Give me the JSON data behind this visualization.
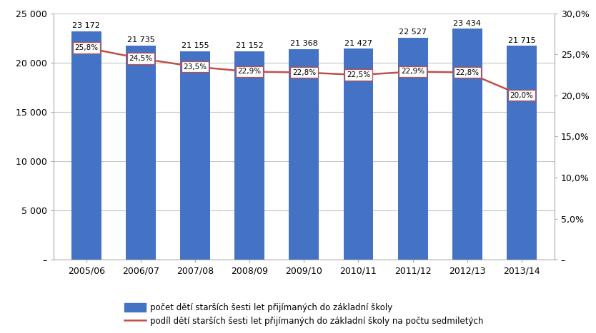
{
  "categories": [
    "2005/06",
    "2006/07",
    "2007/08",
    "2008/09",
    "2009/10",
    "2010/11",
    "2011/12",
    "2012/13",
    "2013/14"
  ],
  "bar_values": [
    23172,
    21735,
    21155,
    21152,
    21368,
    21427,
    22527,
    23434,
    21715
  ],
  "line_values": [
    25.8,
    24.5,
    23.5,
    22.9,
    22.8,
    22.5,
    22.9,
    22.8,
    20.0
  ],
  "bar_color": "#4472C4",
  "line_color": "#C0504D",
  "bar_label": "počet dětí starších šesti let přijímaných do základní školy",
  "line_label": "podíl dětí starších šesti let přijímaných do základní školy na počtu sedmiletých",
  "ylim_left": [
    0,
    25000
  ],
  "ylim_right": [
    0,
    30.0
  ],
  "yticks_left": [
    0,
    5000,
    10000,
    15000,
    20000,
    25000
  ],
  "yticks_right": [
    0,
    5.0,
    10.0,
    15.0,
    20.0,
    25.0,
    30.0
  ],
  "ytick_labels_left": [
    "–",
    "5 000",
    "10 000",
    "15 000",
    "20 000",
    "25 000"
  ],
  "ytick_labels_right": [
    "–",
    "5,0%",
    "10,0%",
    "15,0%",
    "20,0%",
    "25,0%",
    "30,0%"
  ],
  "background_color": "#FFFFFF",
  "grid_color": "#C8C8C8",
  "bar_annotation_fontsize": 8.0,
  "line_annotation_fontsize": 7.5,
  "bar_width": 0.55
}
